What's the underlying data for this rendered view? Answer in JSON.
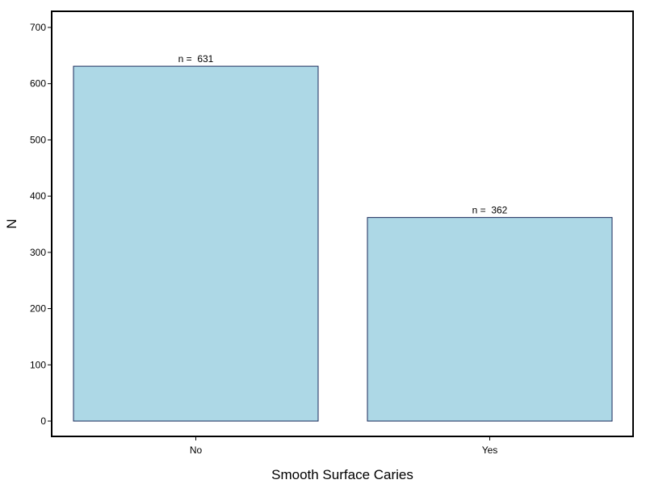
{
  "chart_data": {
    "type": "bar",
    "categories": [
      "No",
      "Yes"
    ],
    "values": [
      631,
      362
    ],
    "data_labels": [
      "n =  631",
      "n =  362"
    ],
    "xlabel": "Smooth Surface Caries",
    "ylabel": "N",
    "ylim": [
      0,
      700
    ],
    "yticks": [
      0,
      100,
      200,
      300,
      400,
      500,
      600,
      700
    ],
    "grid": false,
    "legend": "none",
    "colors": {
      "bar_fill": "#add8e6",
      "bar_stroke": "#1a2a5a",
      "frame": "#000000"
    }
  }
}
